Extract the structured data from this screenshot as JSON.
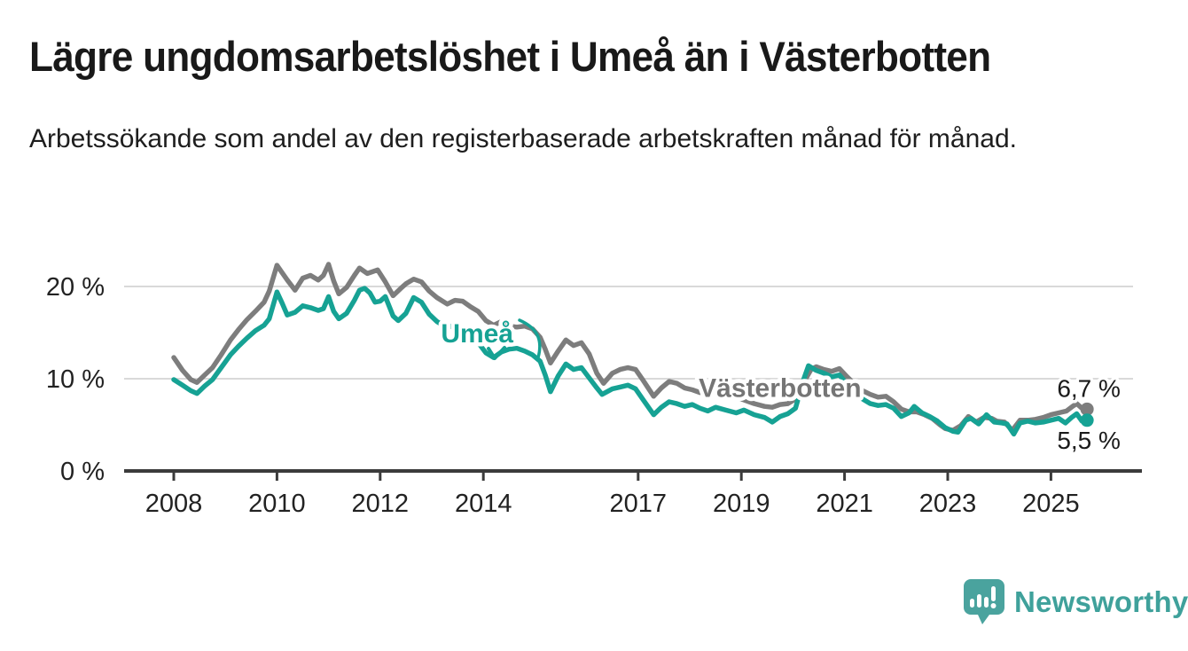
{
  "header": {
    "title": "Lägre ungdomsarbetslöshet i Umeå än i Västerbotten",
    "subtitle": "Arbetssökande som andel av den registerbaserade arbetskraften månad för månad."
  },
  "chart_data": {
    "type": "line",
    "unit": "%",
    "grid": "horizontal-only",
    "legend_position": "inline-labels",
    "x_axis": {
      "min": 2008,
      "max": 2025.7,
      "ticks": [
        2008,
        2010,
        2012,
        2014,
        2017,
        2019,
        2021,
        2023,
        2025
      ]
    },
    "y_axis": {
      "min": 0,
      "max": 24,
      "ticks": [
        0,
        10,
        20
      ],
      "tick_labels": [
        "0 %",
        "10 %",
        "20 %"
      ],
      "gridlines": [
        10,
        20
      ]
    },
    "colors": {
      "umea": "#16a294",
      "vasterbotten": "#7d7d7d",
      "gridline": "#d9d9d9",
      "axis": "#3b3b3b",
      "text": "#1a1a1a"
    },
    "series": [
      {
        "name": "Västerbotten",
        "color": "#7d7d7d",
        "end_label": "6,7 %",
        "end_value": 6.7,
        "points": [
          [
            2008.0,
            12.3
          ],
          [
            2008.17,
            10.9
          ],
          [
            2008.33,
            9.9
          ],
          [
            2008.45,
            9.6
          ],
          [
            2008.6,
            10.4
          ],
          [
            2008.75,
            11.2
          ],
          [
            2008.92,
            12.6
          ],
          [
            2009.1,
            14.2
          ],
          [
            2009.25,
            15.3
          ],
          [
            2009.42,
            16.4
          ],
          [
            2009.58,
            17.3
          ],
          [
            2009.75,
            18.3
          ],
          [
            2009.85,
            19.5
          ],
          [
            2010.0,
            22.3
          ],
          [
            2010.1,
            21.5
          ],
          [
            2010.2,
            20.7
          ],
          [
            2010.35,
            19.6
          ],
          [
            2010.5,
            20.9
          ],
          [
            2010.65,
            21.2
          ],
          [
            2010.8,
            20.7
          ],
          [
            2010.9,
            21.2
          ],
          [
            2011.0,
            22.4
          ],
          [
            2011.1,
            20.6
          ],
          [
            2011.2,
            19.2
          ],
          [
            2011.35,
            19.9
          ],
          [
            2011.5,
            21.2
          ],
          [
            2011.6,
            22.0
          ],
          [
            2011.75,
            21.4
          ],
          [
            2011.85,
            21.6
          ],
          [
            2011.95,
            21.8
          ],
          [
            2012.1,
            20.5
          ],
          [
            2012.25,
            19.0
          ],
          [
            2012.4,
            19.8
          ],
          [
            2012.5,
            20.3
          ],
          [
            2012.65,
            20.8
          ],
          [
            2012.8,
            20.5
          ],
          [
            2012.95,
            19.5
          ],
          [
            2013.1,
            18.8
          ],
          [
            2013.3,
            18.1
          ],
          [
            2013.45,
            18.5
          ],
          [
            2013.6,
            18.4
          ],
          [
            2013.75,
            17.8
          ],
          [
            2013.9,
            17.3
          ],
          [
            2014.05,
            16.3
          ],
          [
            2014.2,
            15.8
          ],
          [
            2014.35,
            16.2
          ],
          [
            2014.5,
            15.7
          ],
          [
            2014.65,
            15.6
          ],
          [
            2014.8,
            15.7
          ],
          [
            2014.95,
            15.4
          ],
          [
            2015.1,
            14.5
          ],
          [
            2015.2,
            13.2
          ],
          [
            2015.3,
            11.7
          ],
          [
            2015.45,
            13.0
          ],
          [
            2015.6,
            14.2
          ],
          [
            2015.75,
            13.6
          ],
          [
            2015.9,
            13.9
          ],
          [
            2016.05,
            12.7
          ],
          [
            2016.2,
            10.6
          ],
          [
            2016.33,
            9.5
          ],
          [
            2016.5,
            10.6
          ],
          [
            2016.65,
            11.0
          ],
          [
            2016.8,
            11.2
          ],
          [
            2016.95,
            11.0
          ],
          [
            2017.1,
            9.8
          ],
          [
            2017.3,
            8.1
          ],
          [
            2017.45,
            9.0
          ],
          [
            2017.6,
            9.7
          ],
          [
            2017.75,
            9.5
          ],
          [
            2017.9,
            9.0
          ],
          [
            2018.05,
            8.8
          ],
          [
            2018.2,
            8.5
          ],
          [
            2018.35,
            8.7
          ],
          [
            2018.5,
            8.9
          ],
          [
            2018.7,
            8.4
          ],
          [
            2018.9,
            8.0
          ],
          [
            2019.05,
            7.7
          ],
          [
            2019.25,
            7.3
          ],
          [
            2019.45,
            7.0
          ],
          [
            2019.6,
            6.9
          ],
          [
            2019.75,
            7.2
          ],
          [
            2019.9,
            7.3
          ],
          [
            2020.05,
            7.8
          ],
          [
            2020.2,
            9.5
          ],
          [
            2020.35,
            11.0
          ],
          [
            2020.45,
            11.3
          ],
          [
            2020.6,
            11.0
          ],
          [
            2020.75,
            10.8
          ],
          [
            2020.9,
            11.1
          ],
          [
            2021.05,
            10.2
          ],
          [
            2021.2,
            9.4
          ],
          [
            2021.35,
            8.7
          ],
          [
            2021.5,
            8.3
          ],
          [
            2021.65,
            8.0
          ],
          [
            2021.8,
            8.1
          ],
          [
            2021.95,
            7.5
          ],
          [
            2022.1,
            6.7
          ],
          [
            2022.25,
            6.4
          ],
          [
            2022.4,
            6.4
          ],
          [
            2022.55,
            6.1
          ],
          [
            2022.7,
            5.7
          ],
          [
            2022.85,
            5.0
          ],
          [
            2022.95,
            4.6
          ],
          [
            2023.1,
            4.4
          ],
          [
            2023.25,
            4.9
          ],
          [
            2023.4,
            5.9
          ],
          [
            2023.55,
            5.3
          ],
          [
            2023.7,
            5.8
          ],
          [
            2023.85,
            5.7
          ],
          [
            2023.95,
            5.4
          ],
          [
            2024.1,
            5.3
          ],
          [
            2024.25,
            4.4
          ],
          [
            2024.4,
            5.5
          ],
          [
            2024.55,
            5.5
          ],
          [
            2024.7,
            5.6
          ],
          [
            2024.85,
            5.8
          ],
          [
            2025.0,
            6.1
          ],
          [
            2025.15,
            6.3
          ],
          [
            2025.3,
            6.5
          ],
          [
            2025.42,
            7.0
          ],
          [
            2025.5,
            7.3
          ],
          [
            2025.6,
            6.8
          ],
          [
            2025.7,
            6.7
          ]
        ]
      },
      {
        "name": "Umeå",
        "color": "#16a294",
        "end_label": "5,5 %",
        "end_value": 5.5,
        "points": [
          [
            2008.0,
            9.9
          ],
          [
            2008.17,
            9.3
          ],
          [
            2008.33,
            8.7
          ],
          [
            2008.45,
            8.4
          ],
          [
            2008.6,
            9.2
          ],
          [
            2008.75,
            9.9
          ],
          [
            2008.92,
            11.2
          ],
          [
            2009.1,
            12.6
          ],
          [
            2009.25,
            13.5
          ],
          [
            2009.42,
            14.4
          ],
          [
            2009.58,
            15.2
          ],
          [
            2009.75,
            15.8
          ],
          [
            2009.85,
            16.5
          ],
          [
            2010.0,
            19.4
          ],
          [
            2010.1,
            18.2
          ],
          [
            2010.2,
            16.9
          ],
          [
            2010.35,
            17.2
          ],
          [
            2010.5,
            17.9
          ],
          [
            2010.65,
            17.7
          ],
          [
            2010.8,
            17.4
          ],
          [
            2010.9,
            17.6
          ],
          [
            2011.0,
            18.9
          ],
          [
            2011.1,
            17.3
          ],
          [
            2011.2,
            16.5
          ],
          [
            2011.35,
            17.1
          ],
          [
            2011.5,
            18.5
          ],
          [
            2011.6,
            19.6
          ],
          [
            2011.7,
            19.8
          ],
          [
            2011.8,
            19.3
          ],
          [
            2011.9,
            18.3
          ],
          [
            2012.0,
            18.4
          ],
          [
            2012.1,
            18.9
          ],
          [
            2012.25,
            16.8
          ],
          [
            2012.35,
            16.3
          ],
          [
            2012.5,
            17.1
          ],
          [
            2012.65,
            18.8
          ],
          [
            2012.8,
            18.3
          ],
          [
            2012.95,
            17.0
          ],
          [
            2013.1,
            16.2
          ],
          [
            2013.3,
            15.5
          ],
          [
            2013.45,
            15.9
          ],
          [
            2013.6,
            15.2
          ],
          [
            2013.75,
            14.5
          ],
          [
            2013.9,
            13.9
          ],
          [
            2014.05,
            12.8
          ],
          [
            2014.2,
            12.3
          ],
          [
            2014.35,
            12.9
          ],
          [
            2014.5,
            13.2
          ],
          [
            2014.65,
            13.3
          ],
          [
            2014.8,
            13.0
          ],
          [
            2014.95,
            12.6
          ],
          [
            2015.1,
            11.9
          ],
          [
            2015.2,
            10.4
          ],
          [
            2015.3,
            8.6
          ],
          [
            2015.45,
            10.3
          ],
          [
            2015.6,
            11.6
          ],
          [
            2015.75,
            11.0
          ],
          [
            2015.9,
            11.2
          ],
          [
            2016.05,
            10.1
          ],
          [
            2016.2,
            9.0
          ],
          [
            2016.3,
            8.3
          ],
          [
            2016.5,
            8.9
          ],
          [
            2016.65,
            9.1
          ],
          [
            2016.8,
            9.3
          ],
          [
            2016.95,
            8.9
          ],
          [
            2017.1,
            7.7
          ],
          [
            2017.3,
            6.1
          ],
          [
            2017.45,
            6.9
          ],
          [
            2017.6,
            7.5
          ],
          [
            2017.75,
            7.3
          ],
          [
            2017.9,
            7.0
          ],
          [
            2018.05,
            7.2
          ],
          [
            2018.2,
            6.8
          ],
          [
            2018.35,
            6.5
          ],
          [
            2018.5,
            6.9
          ],
          [
            2018.7,
            6.6
          ],
          [
            2018.9,
            6.3
          ],
          [
            2019.05,
            6.6
          ],
          [
            2019.25,
            6.1
          ],
          [
            2019.45,
            5.8
          ],
          [
            2019.6,
            5.3
          ],
          [
            2019.75,
            5.9
          ],
          [
            2019.9,
            6.2
          ],
          [
            2020.05,
            6.8
          ],
          [
            2020.2,
            9.8
          ],
          [
            2020.3,
            11.4
          ],
          [
            2020.45,
            10.9
          ],
          [
            2020.6,
            10.6
          ],
          [
            2020.75,
            10.2
          ],
          [
            2020.9,
            10.4
          ],
          [
            2021.05,
            9.4
          ],
          [
            2021.2,
            8.5
          ],
          [
            2021.35,
            7.8
          ],
          [
            2021.5,
            7.3
          ],
          [
            2021.65,
            7.1
          ],
          [
            2021.8,
            7.2
          ],
          [
            2021.95,
            6.8
          ],
          [
            2022.1,
            5.9
          ],
          [
            2022.25,
            6.3
          ],
          [
            2022.35,
            7.0
          ],
          [
            2022.5,
            6.3
          ],
          [
            2022.65,
            5.9
          ],
          [
            2022.8,
            5.4
          ],
          [
            2022.95,
            4.7
          ],
          [
            2023.1,
            4.3
          ],
          [
            2023.2,
            4.2
          ],
          [
            2023.35,
            5.5
          ],
          [
            2023.45,
            5.7
          ],
          [
            2023.6,
            5.1
          ],
          [
            2023.75,
            6.1
          ],
          [
            2023.9,
            5.3
          ],
          [
            2024.05,
            5.2
          ],
          [
            2024.15,
            5.1
          ],
          [
            2024.28,
            4.0
          ],
          [
            2024.4,
            5.2
          ],
          [
            2024.55,
            5.4
          ],
          [
            2024.7,
            5.2
          ],
          [
            2024.85,
            5.3
          ],
          [
            2025.0,
            5.5
          ],
          [
            2025.15,
            5.7
          ],
          [
            2025.28,
            5.2
          ],
          [
            2025.4,
            5.8
          ],
          [
            2025.5,
            6.2
          ],
          [
            2025.6,
            5.4
          ],
          [
            2025.7,
            5.5
          ]
        ]
      }
    ],
    "annotations": [
      {
        "text": "Umeå",
        "color": "#16a294",
        "x": 2013.88,
        "y": 14.9
      },
      {
        "text": "Västerbotten",
        "color": "#757575",
        "x": 2019.75,
        "y": 9.0
      }
    ]
  },
  "logo": {
    "text": "Newsworthy",
    "color": "#44a19c",
    "icon": "speech-bubble-bar-chart-icon"
  }
}
